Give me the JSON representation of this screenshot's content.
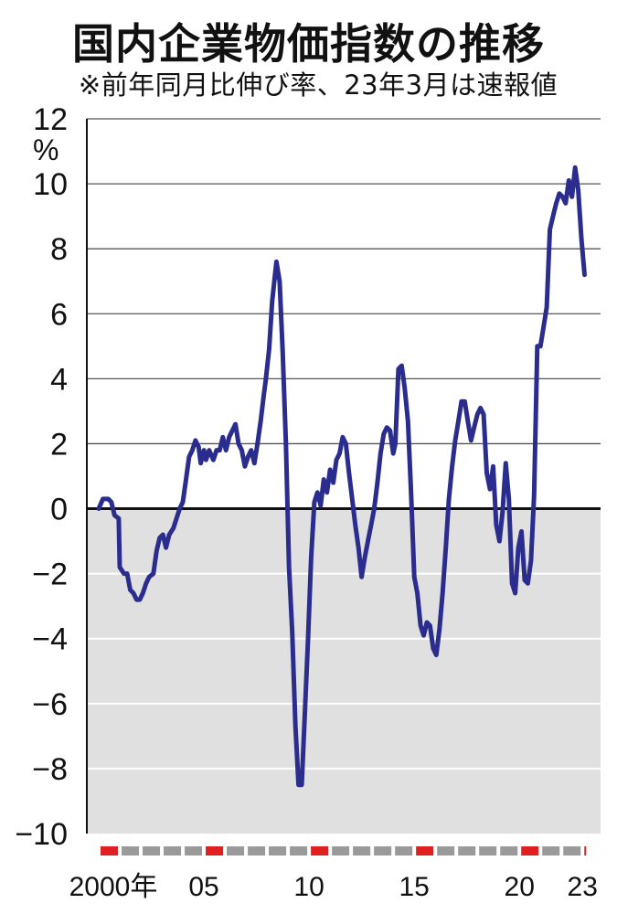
{
  "header": {
    "title": "国内企業物価指数の推移",
    "subtitle": "※前年同月比伸び率、23年3月は速報値"
  },
  "colors": {
    "line": "#2b2d8e",
    "negative_band": "#e0e0e0",
    "year_bar_gray": "#9a9a9a",
    "year_bar_red": "#e02020",
    "grid": "#555555"
  },
  "chart_data": {
    "type": "line",
    "unit": "%",
    "ylim": [
      -10,
      12
    ],
    "yticks": [
      12,
      10,
      8,
      6,
      4,
      2,
      0,
      -2,
      -4,
      -6,
      -8,
      -10
    ],
    "ytick_labels": [
      "12",
      "10",
      "8",
      "6",
      "4",
      "2",
      "0",
      "−2",
      "−4",
      "−6",
      "−8",
      "−10"
    ],
    "xlim": [
      2000.0,
      2023.25
    ],
    "xtick_labels": [
      {
        "x": 2000,
        "label": "2000年"
      },
      {
        "x": 2005,
        "label": "05"
      },
      {
        "x": 2010,
        "label": "10"
      },
      {
        "x": 2015,
        "label": "15"
      },
      {
        "x": 2020,
        "label": "20"
      },
      {
        "x": 2023,
        "label": "23"
      }
    ],
    "highlight_years": [
      2000,
      2005,
      2010,
      2015,
      2020,
      2023
    ],
    "grid": true,
    "negative_shaded": true,
    "series": [
      {
        "points": [
          [
            2000.0,
            0.0
          ],
          [
            2000.2,
            0.3
          ],
          [
            2000.45,
            0.3
          ],
          [
            2000.6,
            0.2
          ],
          [
            2000.75,
            -0.2
          ],
          [
            2000.95,
            -0.3
          ],
          [
            2001.0,
            -1.8
          ],
          [
            2001.2,
            -2.0
          ],
          [
            2001.35,
            -2.0
          ],
          [
            2001.5,
            -2.5
          ],
          [
            2001.65,
            -2.6
          ],
          [
            2001.8,
            -2.8
          ],
          [
            2001.95,
            -2.8
          ],
          [
            2002.1,
            -2.6
          ],
          [
            2002.25,
            -2.3
          ],
          [
            2002.4,
            -2.1
          ],
          [
            2002.6,
            -2.0
          ],
          [
            2002.75,
            -1.3
          ],
          [
            2002.9,
            -0.9
          ],
          [
            2003.05,
            -0.8
          ],
          [
            2003.2,
            -1.2
          ],
          [
            2003.35,
            -0.8
          ],
          [
            2003.55,
            -0.6
          ],
          [
            2003.7,
            -0.3
          ],
          [
            2003.85,
            0.0
          ],
          [
            2004.0,
            0.2
          ],
          [
            2004.15,
            0.9
          ],
          [
            2004.3,
            1.6
          ],
          [
            2004.45,
            1.8
          ],
          [
            2004.6,
            2.1
          ],
          [
            2004.75,
            1.9
          ],
          [
            2004.85,
            1.4
          ],
          [
            2005.0,
            1.8
          ],
          [
            2005.1,
            1.5
          ],
          [
            2005.25,
            1.8
          ],
          [
            2005.45,
            1.5
          ],
          [
            2005.6,
            1.8
          ],
          [
            2005.75,
            1.8
          ],
          [
            2005.9,
            2.2
          ],
          [
            2006.05,
            1.8
          ],
          [
            2006.2,
            2.2
          ],
          [
            2006.35,
            2.4
          ],
          [
            2006.5,
            2.6
          ],
          [
            2006.65,
            2.0
          ],
          [
            2006.8,
            1.8
          ],
          [
            2006.95,
            1.3
          ],
          [
            2007.1,
            1.6
          ],
          [
            2007.25,
            1.8
          ],
          [
            2007.4,
            1.4
          ],
          [
            2007.55,
            2.0
          ],
          [
            2007.7,
            2.7
          ],
          [
            2007.85,
            3.5
          ],
          [
            2007.95,
            4.0
          ],
          [
            2008.1,
            4.9
          ],
          [
            2008.25,
            6.4
          ],
          [
            2008.45,
            7.6
          ],
          [
            2008.6,
            7.0
          ],
          [
            2008.75,
            4.8
          ],
          [
            2008.9,
            2.0
          ],
          [
            2009.05,
            -1.8
          ],
          [
            2009.2,
            -3.8
          ],
          [
            2009.35,
            -6.7
          ],
          [
            2009.5,
            -8.5
          ],
          [
            2009.65,
            -8.5
          ],
          [
            2009.8,
            -6.3
          ],
          [
            2009.95,
            -4.0
          ],
          [
            2010.1,
            -1.5
          ],
          [
            2010.25,
            0.2
          ],
          [
            2010.4,
            0.5
          ],
          [
            2010.55,
            0.1
          ],
          [
            2010.7,
            0.9
          ],
          [
            2010.85,
            0.5
          ],
          [
            2011.0,
            1.2
          ],
          [
            2011.15,
            0.8
          ],
          [
            2011.3,
            1.5
          ],
          [
            2011.45,
            1.7
          ],
          [
            2011.6,
            2.2
          ],
          [
            2011.75,
            2.0
          ],
          [
            2011.9,
            1.1
          ],
          [
            2012.05,
            0.3
          ],
          [
            2012.2,
            -0.5
          ],
          [
            2012.35,
            -1.2
          ],
          [
            2012.5,
            -2.1
          ],
          [
            2012.65,
            -1.5
          ],
          [
            2012.8,
            -1.0
          ],
          [
            2012.95,
            -0.5
          ],
          [
            2013.1,
            0.0
          ],
          [
            2013.25,
            0.8
          ],
          [
            2013.4,
            1.7
          ],
          [
            2013.55,
            2.3
          ],
          [
            2013.7,
            2.5
          ],
          [
            2013.85,
            2.4
          ],
          [
            2014.0,
            1.7
          ],
          [
            2014.1,
            2.0
          ],
          [
            2014.25,
            4.3
          ],
          [
            2014.4,
            4.4
          ],
          [
            2014.55,
            3.7
          ],
          [
            2014.7,
            2.7
          ],
          [
            2014.85,
            0.5
          ],
          [
            2015.0,
            -2.1
          ],
          [
            2015.15,
            -2.6
          ],
          [
            2015.3,
            -3.6
          ],
          [
            2015.45,
            -3.9
          ],
          [
            2015.6,
            -3.5
          ],
          [
            2015.75,
            -3.6
          ],
          [
            2015.9,
            -4.3
          ],
          [
            2016.05,
            -4.5
          ],
          [
            2016.2,
            -3.7
          ],
          [
            2016.35,
            -2.6
          ],
          [
            2016.5,
            -1.2
          ],
          [
            2016.65,
            0.3
          ],
          [
            2016.8,
            1.3
          ],
          [
            2016.95,
            2.1
          ],
          [
            2017.1,
            2.7
          ],
          [
            2017.25,
            3.3
          ],
          [
            2017.4,
            3.3
          ],
          [
            2017.55,
            2.7
          ],
          [
            2017.7,
            2.1
          ],
          [
            2017.85,
            2.5
          ],
          [
            2018.0,
            2.9
          ],
          [
            2018.15,
            3.1
          ],
          [
            2018.3,
            2.9
          ],
          [
            2018.45,
            1.1
          ],
          [
            2018.6,
            0.6
          ],
          [
            2018.75,
            1.3
          ],
          [
            2018.9,
            -0.5
          ],
          [
            2019.05,
            -1.0
          ],
          [
            2019.2,
            -0.1
          ],
          [
            2019.35,
            1.4
          ],
          [
            2019.5,
            0.3
          ],
          [
            2019.65,
            -2.3
          ],
          [
            2019.8,
            -2.6
          ],
          [
            2019.95,
            -1.2
          ],
          [
            2020.1,
            -0.7
          ],
          [
            2020.25,
            -2.2
          ],
          [
            2020.4,
            -2.3
          ],
          [
            2020.55,
            -1.6
          ],
          [
            2020.7,
            0.4
          ],
          [
            2020.85,
            5.0
          ],
          [
            2021.0,
            5.0
          ],
          [
            2021.15,
            5.6
          ],
          [
            2021.3,
            6.2
          ],
          [
            2021.45,
            8.6
          ],
          [
            2021.6,
            9.0
          ],
          [
            2021.75,
            9.4
          ],
          [
            2021.9,
            9.7
          ],
          [
            2022.05,
            9.6
          ],
          [
            2022.2,
            9.4
          ],
          [
            2022.35,
            10.1
          ],
          [
            2022.5,
            9.6
          ],
          [
            2022.65,
            10.5
          ],
          [
            2022.8,
            9.8
          ],
          [
            2022.95,
            8.3
          ],
          [
            2023.1,
            7.2
          ]
        ]
      }
    ]
  }
}
